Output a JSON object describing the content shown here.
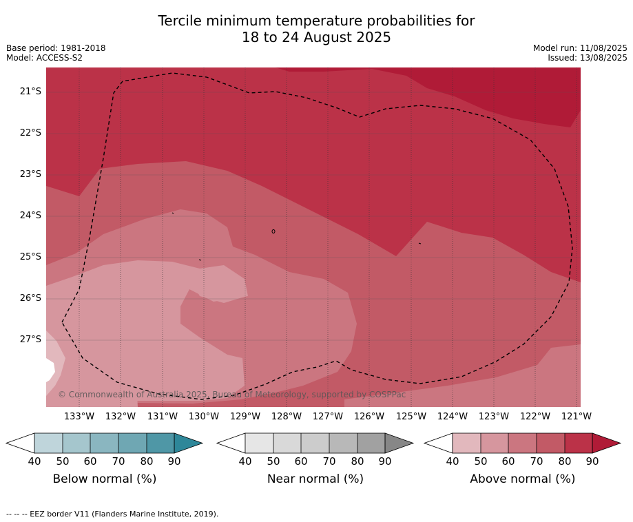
{
  "title_line1": "Tercile minimum temperature probabilities for",
  "title_line2": "18 to 24 August 2025",
  "meta_left": [
    "Base period: 1981-2018",
    "Model: ACCESS-S2"
  ],
  "meta_right": [
    "Model run: 11/08/2025",
    "Issued: 13/08/2025"
  ],
  "lat_labels": [
    "21°S",
    "22°S",
    "23°S",
    "24°S",
    "25°S",
    "26°S",
    "27°S"
  ],
  "lon_labels": [
    "133°W",
    "132°W",
    "131°W",
    "130°W",
    "129°W",
    "128°W",
    "127°W",
    "126°W",
    "125°W",
    "124°W",
    "123°W",
    "122°W",
    "121°W"
  ],
  "copyright": "© Commonwealth of Australia 2025, Bureau of Meteorology, supported by COSPPac",
  "legend": {
    "ticks": [
      "40",
      "50",
      "60",
      "70",
      "80",
      "90"
    ],
    "below": {
      "title": "Below normal (%)",
      "colors": [
        "#bfd5db",
        "#a5c6cd",
        "#8ab6c0",
        "#6fa7b3",
        "#4f97a6",
        "#2e8799"
      ]
    },
    "near": {
      "title": "Near normal (%)",
      "colors": [
        "#e6e6e6",
        "#d9d9d9",
        "#cccccc",
        "#b8b8b8",
        "#a1a1a1",
        "#878787"
      ]
    },
    "above": {
      "title": "Above normal (%)",
      "colors": [
        "#e2b8bd",
        "#d6969e",
        "#cb7680",
        "#c25a66",
        "#bb3248",
        "#b01b37"
      ]
    }
  },
  "footnote": "--  --  -- EEZ border V11 (Flanders Marine Institute, 2019)."
}
